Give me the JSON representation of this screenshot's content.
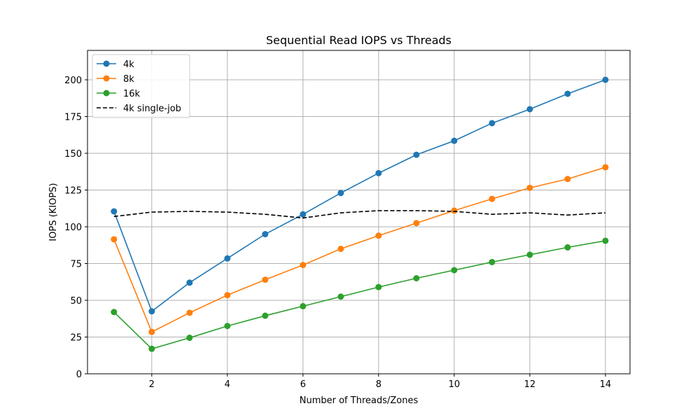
{
  "chart_data": {
    "type": "line",
    "title": "Sequential Read IOPS vs Threads",
    "xlabel": "Number of Threads/Zones",
    "ylabel": "IOPS (KIOPS)",
    "xlim": [
      0.3,
      14.65
    ],
    "ylim": [
      0,
      220
    ],
    "xticks": [
      2,
      4,
      6,
      8,
      10,
      12,
      14
    ],
    "yticks": [
      0,
      25,
      50,
      75,
      100,
      125,
      150,
      175,
      200
    ],
    "grid": true,
    "legend_position": "top-left",
    "x": [
      1,
      2,
      3,
      4,
      5,
      6,
      7,
      8,
      9,
      10,
      11,
      12,
      13,
      14
    ],
    "series": [
      {
        "name": "4k",
        "color": "#1f77b4",
        "style": "solid-marker",
        "values": [
          110.5,
          42.5,
          62,
          78.5,
          95,
          108.5,
          123,
          136.5,
          149,
          158.5,
          170.5,
          180,
          190.5,
          200
        ]
      },
      {
        "name": "8k",
        "color": "#ff7f0e",
        "style": "solid-marker",
        "values": [
          91.5,
          28.5,
          41.5,
          53.5,
          64,
          74,
          85,
          94,
          102.5,
          111,
          119,
          126.5,
          132.5,
          140.5
        ]
      },
      {
        "name": "16k",
        "color": "#2ca02c",
        "style": "solid-marker",
        "values": [
          42,
          17,
          24.5,
          32.5,
          39.5,
          46,
          52.5,
          59,
          65,
          70.5,
          76,
          81,
          86,
          90.5
        ]
      },
      {
        "name": "4k single-job",
        "color": "#000000",
        "style": "dashed",
        "values": [
          107,
          110,
          110.5,
          110,
          108.5,
          106,
          109.5,
          111,
          111,
          110.5,
          108.5,
          109.5,
          108,
          109.5
        ]
      }
    ]
  }
}
